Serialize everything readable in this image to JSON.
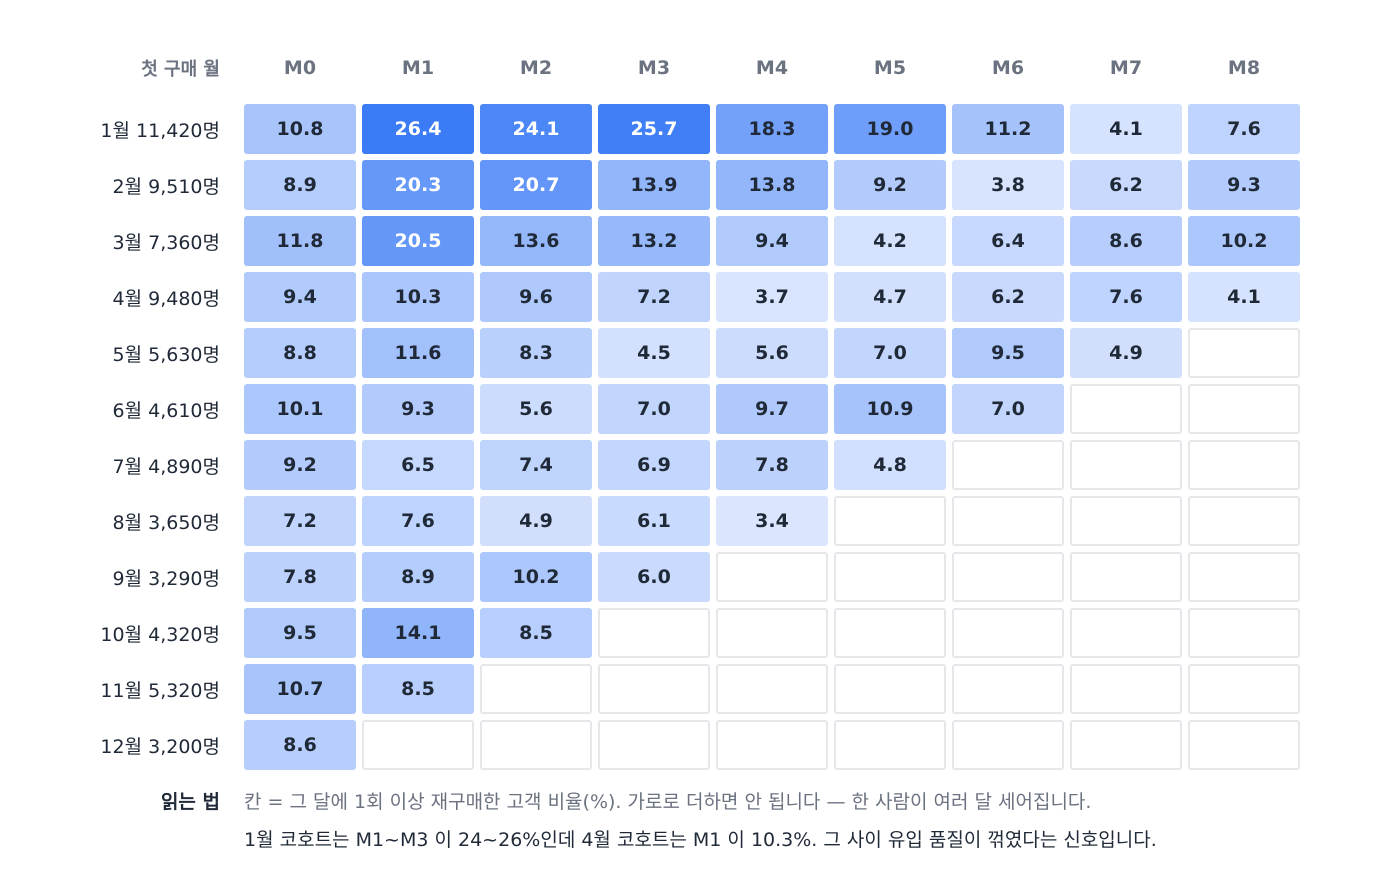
{
  "chart_data": {
    "type": "heatmap",
    "row_header": "첫 구매 월",
    "columns": [
      "M0",
      "M1",
      "M2",
      "M3",
      "M4",
      "M5",
      "M6",
      "M7",
      "M8"
    ],
    "rows": [
      {
        "label": "1월 11,420명",
        "values": [
          10.8,
          26.4,
          24.1,
          25.7,
          18.3,
          19.0,
          11.2,
          4.1,
          7.6
        ]
      },
      {
        "label": "2월 9,510명",
        "values": [
          8.9,
          20.3,
          20.7,
          13.9,
          13.8,
          9.2,
          3.8,
          6.2,
          9.3
        ]
      },
      {
        "label": "3월 7,360명",
        "values": [
          11.8,
          20.5,
          13.6,
          13.2,
          9.4,
          4.2,
          6.4,
          8.6,
          10.2
        ]
      },
      {
        "label": "4월 9,480명",
        "values": [
          9.4,
          10.3,
          9.6,
          7.2,
          3.7,
          4.7,
          6.2,
          7.6,
          4.1
        ]
      },
      {
        "label": "5월 5,630명",
        "values": [
          8.8,
          11.6,
          8.3,
          4.5,
          5.6,
          7.0,
          9.5,
          4.9,
          null
        ]
      },
      {
        "label": "6월 4,610명",
        "values": [
          10.1,
          9.3,
          5.6,
          7.0,
          9.7,
          10.9,
          7.0,
          null,
          null
        ]
      },
      {
        "label": "7월 4,890명",
        "values": [
          9.2,
          6.5,
          7.4,
          6.9,
          7.8,
          4.8,
          null,
          null,
          null
        ]
      },
      {
        "label": "8월 3,650명",
        "values": [
          7.2,
          7.6,
          4.9,
          6.1,
          3.4,
          null,
          null,
          null,
          null
        ]
      },
      {
        "label": "9월 3,290명",
        "values": [
          7.8,
          8.9,
          10.2,
          6.0,
          null,
          null,
          null,
          null,
          null
        ]
      },
      {
        "label": "10월 4,320명",
        "values": [
          9.5,
          14.1,
          8.5,
          null,
          null,
          null,
          null,
          null,
          null
        ]
      },
      {
        "label": "11월 5,320명",
        "values": [
          10.7,
          8.5,
          null,
          null,
          null,
          null,
          null,
          null,
          null
        ]
      },
      {
        "label": "12월 3,200명",
        "values": [
          8.6,
          null,
          null,
          null,
          null,
          null,
          null,
          null,
          null
        ]
      }
    ],
    "color_scale": {
      "low": "#dbe6fe",
      "high": "#3b7cf6",
      "empty": "#ffffff",
      "empty_border": "#e5e7eb"
    }
  },
  "legend": {
    "title": "읽는 법",
    "line1": "칸 = 그 달에 1회 이상 재구매한 고객 비율(%). 가로로 더하면 안 됩니다 — 한 사람이 여러 달 세어집니다.",
    "line2": "1월 코호트는 M1~M3 이 24~26%인데 4월 코호트는 M1 이 10.3%. 그 사이 유입 품질이 꺾였다는 신호입니다."
  }
}
